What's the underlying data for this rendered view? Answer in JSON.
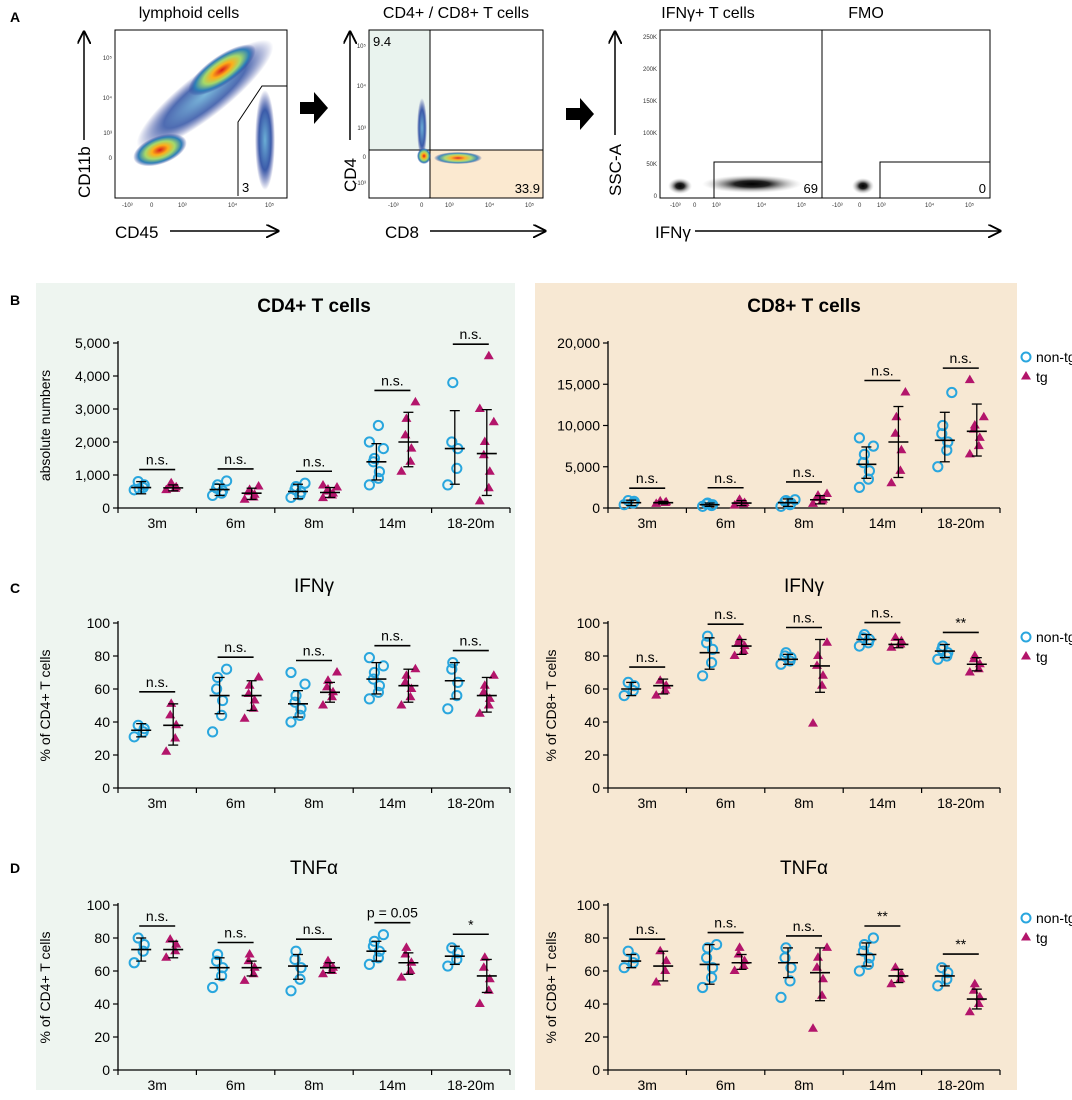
{
  "panel_letters": [
    "A",
    "B",
    "C",
    "D"
  ],
  "colors": {
    "non_tg": "#29A6DE",
    "tg": "#B3156B",
    "cd4_bg": "#EEF5F0",
    "cd8_bg": "#F7E8D3",
    "gate_cd4_fill": "#E9F3EE",
    "gate_cd8_fill": "#FBE9D0"
  },
  "flow": {
    "lymphoid": {
      "title": "lymphoid cells",
      "xlabel": "CD45",
      "ylabel": "CD11b",
      "gate_value": "3",
      "x_ticks": [
        "-10³",
        "0",
        "10³",
        "10⁴",
        "10⁵"
      ],
      "y_ticks": [
        "10⁵",
        "10⁴",
        "10³",
        "0"
      ]
    },
    "cd4cd8": {
      "title": "CD4+ / CD8+ T cells",
      "xlabel": "CD8",
      "ylabel": "CD4",
      "cd4_value": "9.4",
      "cd8_value": "33.9",
      "x_ticks": [
        "-10³",
        "0",
        "10³",
        "10⁴",
        "10⁵"
      ],
      "y_ticks": [
        "10⁵",
        "10⁴",
        "10³",
        "0",
        "-10³"
      ]
    },
    "ifng": {
      "title": "IFNγ+ T cells",
      "title2": "FMO",
      "xlabel": "IFNγ",
      "ylabel": "SSC-A",
      "gate_value": "69",
      "fmo_value": "0",
      "y_ticks": [
        "250K",
        "200K",
        "150K",
        "100K",
        "50K",
        "0"
      ],
      "x_ticks": [
        "-10³",
        "0",
        "10³",
        "10⁴",
        "10⁵"
      ]
    }
  },
  "legend": {
    "non_tg": "non-tg",
    "tg": "tg"
  },
  "chart_data": [
    {
      "id": "B_CD4",
      "type": "scatter",
      "title": "CD4+ T cells",
      "ylabel": "absolute numbers",
      "categories": [
        "3m",
        "6m",
        "8m",
        "14m",
        "18-20m"
      ],
      "ylim": [
        0,
        5000
      ],
      "yticks": [
        "0",
        "1,000",
        "2,000",
        "3,000",
        "4,000",
        "5,000"
      ],
      "significance": [
        "n.s.",
        "n.s.",
        "n.s.",
        "n.s.",
        "n.s."
      ],
      "series": [
        {
          "name": "non-tg",
          "marker": "circle",
          "points": [
            [
              550,
              620,
              700,
              800,
              580
            ],
            [
              380,
              450,
              520,
              600,
              700,
              820
            ],
            [
              320,
              400,
              480,
              560,
              650,
              750
            ],
            [
              700,
              900,
              1100,
              1400,
              1500,
              1800,
              2000,
              2500
            ],
            [
              700,
              1200,
              1800,
              2000,
              3800
            ]
          ],
          "mean": [
            620,
            560,
            500,
            1400,
            1800
          ],
          "lower": [
            430,
            380,
            280,
            850,
            720
          ],
          "upper": [
            800,
            720,
            720,
            1950,
            2950
          ]
        },
        {
          "name": "tg",
          "marker": "triangle",
          "points": [
            [
              540,
              580,
              630,
              700,
              750
            ],
            [
              250,
              320,
              400,
              480,
              550,
              650
            ],
            [
              300,
              380,
              440,
              500,
              560,
              620,
              680
            ],
            [
              1100,
              1400,
              1800,
              2200,
              2700,
              3200
            ],
            [
              200,
              600,
              1100,
              1600,
              2000,
              2600,
              3000,
              4600
            ]
          ],
          "mean": [
            610,
            450,
            470,
            2000,
            1650
          ],
          "lower": [
            520,
            260,
            320,
            1250,
            380
          ],
          "upper": [
            700,
            600,
            620,
            2900,
            2980
          ]
        }
      ]
    },
    {
      "id": "B_CD8",
      "type": "scatter",
      "title": "CD8+ T cells",
      "ylabel": "",
      "categories": [
        "3m",
        "6m",
        "8m",
        "14m",
        "18-20m"
      ],
      "ylim": [
        0,
        20000
      ],
      "yticks": [
        "0",
        "5,000",
        "10,000",
        "15,000",
        "20,000"
      ],
      "significance": [
        "n.s.",
        "n.s.",
        "n.s.",
        "n.s.",
        "n.s."
      ],
      "series": [
        {
          "name": "non-tg",
          "marker": "circle",
          "points": [
            [
              400,
              600,
              800,
              900
            ],
            [
              200,
              300,
              400,
              500,
              600
            ],
            [
              200,
              400,
              600,
              800,
              900,
              1000
            ],
            [
              2500,
              3500,
              4500,
              5500,
              6500,
              7500,
              8500
            ],
            [
              5000,
              7000,
              8000,
              9000,
              10000,
              14000
            ]
          ],
          "mean": [
            650,
            400,
            650,
            5300,
            8200
          ],
          "lower": [
            300,
            200,
            200,
            3600,
            5600
          ],
          "upper": [
            950,
            600,
            1100,
            7400,
            11600
          ]
        },
        {
          "name": "tg",
          "marker": "triangle",
          "points": [
            [
              500,
              600,
              700,
              800
            ],
            [
              300,
              450,
              600,
              800,
              1000
            ],
            [
              500,
              800,
              1000,
              1200,
              1500,
              1700
            ],
            [
              3000,
              4500,
              7000,
              9000,
              11000,
              14000
            ],
            [
              6500,
              7500,
              8500,
              9500,
              10000,
              11000,
              15500
            ]
          ],
          "mean": [
            650,
            600,
            1000,
            8000,
            9300
          ],
          "lower": [
            500,
            300,
            500,
            3700,
            6300
          ],
          "upper": [
            800,
            900,
            1500,
            12300,
            12600
          ]
        }
      ]
    },
    {
      "id": "C_CD4",
      "type": "scatter",
      "title": "IFNγ",
      "ylabel": "% of CD4+ T cells",
      "categories": [
        "3m",
        "6m",
        "8m",
        "14m",
        "18-20m"
      ],
      "ylim": [
        0,
        100
      ],
      "yticks": [
        "0",
        "20",
        "40",
        "60",
        "80",
        "100"
      ],
      "significance": [
        "n.s.",
        "n.s.",
        "n.s.",
        "n.s.",
        "n.s."
      ],
      "series": [
        {
          "name": "non-tg",
          "marker": "circle",
          "points": [
            [
              31,
              34,
              36,
              38
            ],
            [
              34,
              44,
              53,
              60,
              67,
              72
            ],
            [
              40,
              44,
              48,
              52,
              56,
              63,
              70
            ],
            [
              54,
              58,
              62,
              66,
              70,
              74,
              79
            ],
            [
              48,
              56,
              64,
              72,
              76
            ]
          ],
          "mean": [
            35,
            56,
            51,
            66,
            65
          ],
          "lower": [
            31,
            45,
            43,
            57,
            54
          ],
          "upper": [
            39,
            67,
            59,
            76,
            76
          ]
        },
        {
          "name": "tg",
          "marker": "triangle",
          "points": [
            [
              22,
              30,
              38,
              44,
              51
            ],
            [
              42,
              48,
              53,
              57,
              62,
              67
            ],
            [
              50,
              55,
              58,
              61,
              65,
              70
            ],
            [
              50,
              55,
              60,
              64,
              68,
              72
            ],
            [
              45,
              50,
              54,
              58,
              62,
              68
            ]
          ],
          "mean": [
            38,
            56,
            58,
            62,
            56
          ],
          "lower": [
            26,
            47,
            52,
            52,
            46
          ],
          "upper": [
            51,
            65,
            64,
            72,
            67
          ]
        }
      ]
    },
    {
      "id": "C_CD8",
      "type": "scatter",
      "title": "IFNγ",
      "ylabel": "% of CD8+ T cells",
      "categories": [
        "3m",
        "6m",
        "8m",
        "14m",
        "18-20m"
      ],
      "ylim": [
        0,
        100
      ],
      "yticks": [
        "0",
        "20",
        "40",
        "60",
        "80",
        "100"
      ],
      "significance": [
        "n.s.",
        "n.s.",
        "n.s.",
        "n.s.",
        "**"
      ],
      "series": [
        {
          "name": "non-tg",
          "marker": "circle",
          "points": [
            [
              56,
              59,
              62,
              64
            ],
            [
              68,
              76,
              84,
              88,
              92
            ],
            [
              75,
              77,
              79,
              80,
              82
            ],
            [
              86,
              88,
              90,
              91,
              93
            ],
            [
              78,
              80,
              82,
              84,
              86
            ]
          ],
          "mean": [
            60,
            82,
            78,
            90,
            83
          ],
          "lower": [
            56,
            72,
            75,
            87,
            79
          ],
          "upper": [
            64,
            91,
            81,
            93,
            87
          ]
        },
        {
          "name": "tg",
          "marker": "triangle",
          "points": [
            [
              56,
              59,
              62,
              65
            ],
            [
              80,
              83,
              86,
              88,
              90
            ],
            [
              39,
              62,
              68,
              74,
              80,
              88
            ],
            [
              85,
              87,
              89,
              91
            ],
            [
              70,
              72,
              75,
              78,
              80
            ]
          ],
          "mean": [
            62,
            86,
            74,
            87,
            75
          ],
          "lower": [
            57,
            81,
            58,
            85,
            71
          ],
          "upper": [
            66,
            90,
            90,
            90,
            79
          ]
        }
      ]
    },
    {
      "id": "D_CD4",
      "type": "scatter",
      "title": "TNFα",
      "ylabel": "% of CD4+ T cells",
      "categories": [
        "3m",
        "6m",
        "8m",
        "14m",
        "18-20m"
      ],
      "ylim": [
        0,
        100
      ],
      "yticks": [
        "0",
        "20",
        "40",
        "60",
        "80",
        "100"
      ],
      "significance": [
        "n.s.",
        "n.s.",
        "n.s.",
        "p = 0.05",
        "*"
      ],
      "series": [
        {
          "name": "non-tg",
          "marker": "circle",
          "points": [
            [
              65,
              72,
              76,
              80
            ],
            [
              50,
              57,
              62,
              66,
              70
            ],
            [
              48,
              55,
              62,
              67,
              72
            ],
            [
              64,
              68,
              72,
              75,
              78,
              82
            ],
            [
              63,
              67,
              71,
              74
            ]
          ],
          "mean": [
            73,
            62,
            63,
            72,
            69
          ],
          "lower": [
            66,
            55,
            55,
            66,
            64
          ],
          "upper": [
            80,
            68,
            70,
            78,
            75
          ]
        },
        {
          "name": "tg",
          "marker": "triangle",
          "points": [
            [
              68,
              72,
              76,
              79
            ],
            [
              54,
              58,
              62,
              66,
              70
            ],
            [
              58,
              60,
              62,
              64,
              66
            ],
            [
              56,
              60,
              65,
              70,
              74
            ],
            [
              40,
              48,
              55,
              62,
              68
            ]
          ],
          "mean": [
            73,
            62,
            62,
            65,
            57
          ],
          "lower": [
            68,
            57,
            59,
            58,
            47
          ],
          "upper": [
            78,
            66,
            65,
            71,
            67
          ]
        }
      ]
    },
    {
      "id": "D_CD8",
      "type": "scatter",
      "title": "TNFα",
      "ylabel": "% of CD8+ T cells",
      "categories": [
        "3m",
        "6m",
        "8m",
        "14m",
        "18-20m"
      ],
      "ylim": [
        0,
        100
      ],
      "yticks": [
        "0",
        "20",
        "40",
        "60",
        "80",
        "100"
      ],
      "significance": [
        "n.s.",
        "n.s.",
        "n.s.",
        "**",
        "**"
      ],
      "series": [
        {
          "name": "non-tg",
          "marker": "circle",
          "points": [
            [
              62,
              65,
              68,
              72
            ],
            [
              50,
              56,
              62,
              68,
              74,
              76
            ],
            [
              44,
              54,
              62,
              68,
              74
            ],
            [
              60,
              64,
              68,
              72,
              76,
              80
            ],
            [
              51,
              55,
              59,
              62
            ]
          ],
          "mean": [
            66,
            64,
            65,
            70,
            57
          ],
          "lower": [
            62,
            52,
            56,
            63,
            51
          ],
          "upper": [
            70,
            76,
            74,
            77,
            63
          ]
        },
        {
          "name": "tg",
          "marker": "triangle",
          "points": [
            [
              53,
              60,
              66,
              72
            ],
            [
              60,
              63,
              66,
              70,
              74
            ],
            [
              25,
              45,
              55,
              62,
              68,
              74
            ],
            [
              52,
              55,
              58,
              62
            ],
            [
              35,
              40,
              44,
              48,
              52
            ]
          ],
          "mean": [
            63,
            65,
            59,
            57,
            43
          ],
          "lower": [
            54,
            61,
            42,
            53,
            37
          ],
          "upper": [
            72,
            70,
            74,
            61,
            49
          ]
        }
      ]
    }
  ]
}
